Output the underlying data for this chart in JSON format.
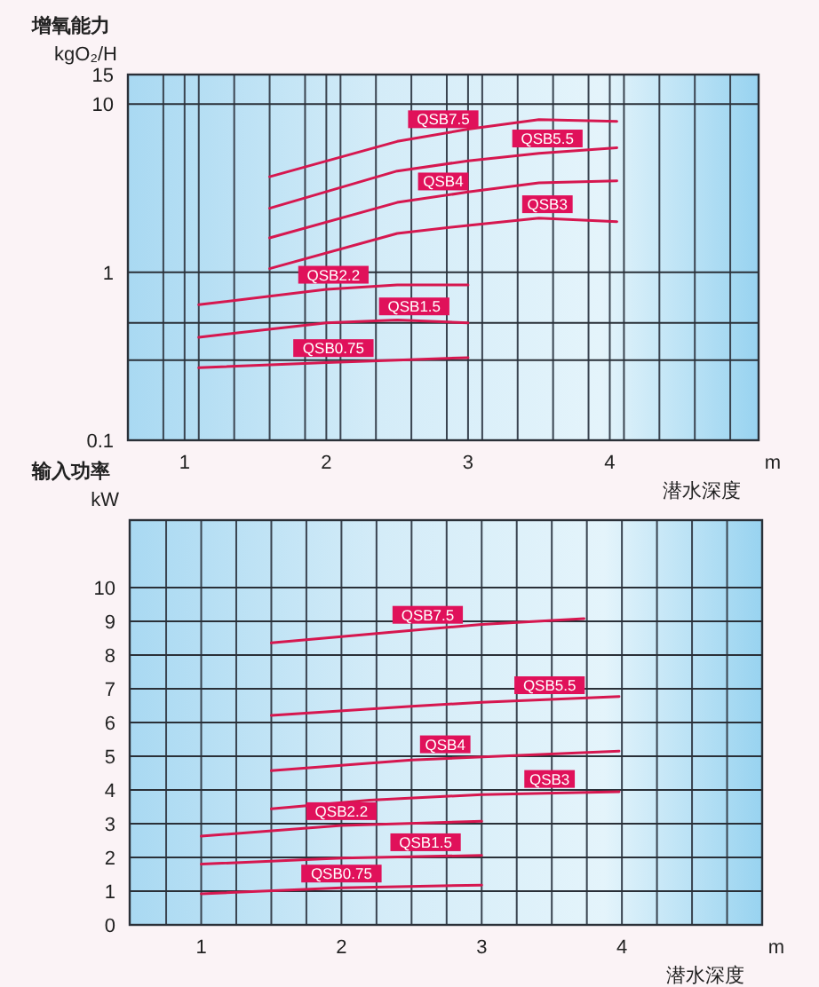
{
  "chart_data": [
    {
      "type": "line",
      "title": "增氧能力",
      "ylabel": "kgO₂/H",
      "xlabel": "潜水深度",
      "annotations": [
        "m"
      ],
      "log": true,
      "xlim": [
        0.6,
        5.05
      ],
      "ylim": [
        0.1,
        15
      ],
      "xticks": [
        {
          "value": 0.85,
          "label": null
        },
        1,
        {
          "value": 1.1,
          "label": null
        },
        {
          "value": 1.35,
          "label": null
        },
        {
          "value": 1.6,
          "label": null
        },
        {
          "value": 1.85,
          "label": null
        },
        2,
        {
          "value": 2.1,
          "label": null
        },
        {
          "value": 2.35,
          "label": null
        },
        {
          "value": 2.6,
          "label": null
        },
        {
          "value": 2.85,
          "label": null
        },
        3,
        {
          "value": 3.1,
          "label": null
        },
        {
          "value": 3.35,
          "label": null
        },
        {
          "value": 3.6,
          "label": null
        },
        {
          "value": 3.85,
          "label": null
        },
        4,
        {
          "value": 4.1,
          "label": null
        },
        {
          "value": 4.35,
          "label": null
        },
        {
          "value": 4.6,
          "label": null
        },
        {
          "value": 4.85,
          "label": null
        }
      ],
      "yticks": [
        0.1,
        {
          "value": 0.3,
          "label": null
        },
        {
          "value": 0.5,
          "label": null
        },
        1,
        10,
        15
      ],
      "grid": true,
      "series": [
        {
          "name": "QSB7.5",
          "color": "#d6174f",
          "x": [
            1.6,
            2.5,
            3.0,
            3.5,
            4.05
          ],
          "values": [
            3.7,
            6.0,
            7.1,
            8.1,
            7.9
          ]
        },
        {
          "name": "QSB5.5",
          "color": "#d6174f",
          "x": [
            1.6,
            2.5,
            3.0,
            3.5,
            4.05
          ],
          "values": [
            2.4,
            4.0,
            4.6,
            5.1,
            5.5
          ]
        },
        {
          "name": "QSB4",
          "color": "#d6174f",
          "x": [
            1.6,
            2.5,
            3.0,
            3.5,
            4.05
          ],
          "values": [
            1.6,
            2.6,
            3.0,
            3.4,
            3.5
          ]
        },
        {
          "name": "QSB3",
          "color": "#d6174f",
          "x": [
            1.6,
            2.5,
            3.0,
            3.5,
            4.05
          ],
          "values": [
            1.05,
            1.7,
            1.9,
            2.1,
            2.0
          ]
        },
        {
          "name": "QSB2.2",
          "color": "#d6174f",
          "x": [
            1.1,
            2.0,
            2.5,
            3.0
          ],
          "values": [
            0.64,
            0.79,
            0.84,
            0.84
          ]
        },
        {
          "name": "QSB1.5",
          "color": "#d6174f",
          "x": [
            1.1,
            2.0,
            2.5,
            3.0
          ],
          "values": [
            0.41,
            0.5,
            0.52,
            0.5
          ]
        },
        {
          "name": "QSB0.75",
          "color": "#d6174f",
          "x": [
            1.1,
            2.0,
            2.5,
            3.0
          ],
          "values": [
            0.27,
            0.29,
            0.3,
            0.31
          ]
        }
      ]
    },
    {
      "type": "line",
      "title": "输入功率",
      "ylabel": "kW",
      "xlabel": "潜水深度",
      "annotations": [
        "m"
      ],
      "xlim": [
        0.49,
        5.0
      ],
      "ylim": [
        0,
        12
      ],
      "xticks": [
        {
          "value": 0.75,
          "label": null
        },
        1,
        {
          "value": 1.25,
          "label": null
        },
        {
          "value": 1.5,
          "label": null
        },
        {
          "value": 1.75,
          "label": null
        },
        2,
        {
          "value": 2.25,
          "label": null
        },
        {
          "value": 2.5,
          "label": null
        },
        {
          "value": 2.75,
          "label": null
        },
        3,
        {
          "value": 3.25,
          "label": null
        },
        {
          "value": 3.5,
          "label": null
        },
        {
          "value": 3.75,
          "label": null
        },
        4,
        {
          "value": 4.25,
          "label": null
        },
        {
          "value": 4.5,
          "label": null
        },
        {
          "value": 4.75,
          "label": null
        }
      ],
      "yticks": [
        0,
        1,
        2,
        3,
        4,
        5,
        6,
        7,
        8,
        9,
        10
      ],
      "grid": true,
      "series": [
        {
          "name": "QSB7.5",
          "color": "#d6174f",
          "x": [
            1.5,
            2.5,
            3.0,
            3.73
          ],
          "values": [
            8.36,
            8.73,
            8.91,
            9.08
          ]
        },
        {
          "name": "QSB5.5",
          "color": "#d6174f",
          "x": [
            1.5,
            2.5,
            3.0,
            3.98
          ],
          "values": [
            6.21,
            6.48,
            6.6,
            6.77
          ]
        },
        {
          "name": "QSB4",
          "color": "#d6174f",
          "x": [
            1.5,
            2.5,
            3.98
          ],
          "values": [
            4.57,
            4.89,
            5.15
          ]
        },
        {
          "name": "QSB3",
          "color": "#d6174f",
          "x": [
            1.5,
            2.2,
            3.0,
            3.98
          ],
          "values": [
            3.44,
            3.7,
            3.86,
            3.95
          ]
        },
        {
          "name": "QSB2.2",
          "color": "#d6174f",
          "x": [
            1.0,
            2.0,
            3.0
          ],
          "values": [
            2.63,
            2.95,
            3.07
          ]
        },
        {
          "name": "QSB1.5",
          "color": "#d6174f",
          "x": [
            1.0,
            2.0,
            3.0
          ],
          "values": [
            1.8,
            1.98,
            2.06
          ]
        },
        {
          "name": "QSB0.75",
          "color": "#d6174f",
          "x": [
            1.0,
            2.0,
            3.0
          ],
          "values": [
            0.92,
            1.1,
            1.18
          ]
        }
      ]
    }
  ]
}
